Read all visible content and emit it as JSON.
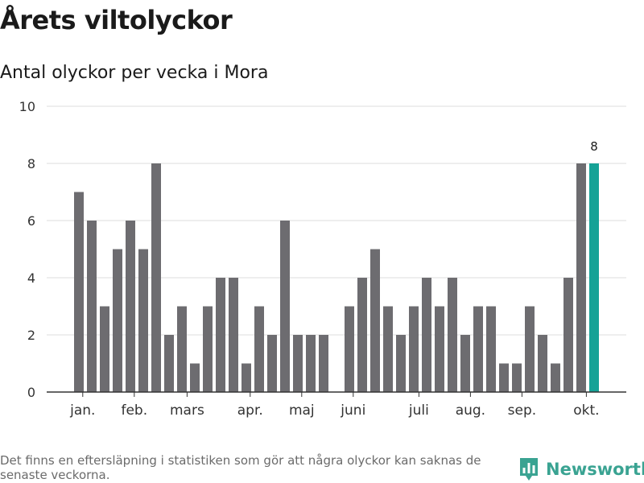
{
  "header": {
    "title": "Årets viltolyckor",
    "subtitle": "Antal olyckor per vecka i Mora"
  },
  "footer": {
    "note": "Det finns en eftersläpning i statistiken som gör att några olyckor kan saknas de senaste veckorna.",
    "brand_name": "Newsworthy",
    "brand_icon": "bar-chart-pin-icon"
  },
  "colors": {
    "bar": "#6d6c70",
    "highlight": "#15a296",
    "grid": "#dddddd",
    "axis": "#333333",
    "brand": "#3aa392"
  },
  "chart_data": {
    "type": "bar",
    "title": "Antal olyckor per vecka i Mora",
    "ylim": [
      0,
      10
    ],
    "yticks": [
      0,
      2,
      4,
      6,
      8,
      10
    ],
    "grid": true,
    "weeks": [
      1,
      2,
      3,
      4,
      5,
      6,
      7,
      8,
      9,
      10,
      11,
      12,
      13,
      14,
      15,
      16,
      17,
      18,
      19,
      20,
      21,
      22,
      23,
      24,
      25,
      26,
      27,
      28,
      29,
      30,
      31,
      32,
      33,
      34,
      35,
      36,
      37,
      38,
      39,
      40,
      41
    ],
    "values": [
      7,
      6,
      3,
      5,
      6,
      5,
      8,
      2,
      3,
      1,
      3,
      4,
      4,
      1,
      3,
      2,
      6,
      2,
      2,
      2,
      0,
      3,
      4,
      5,
      3,
      2,
      3,
      4,
      3,
      4,
      2,
      3,
      3,
      1,
      1,
      3,
      2,
      1,
      4,
      8,
      8
    ],
    "highlight_last": true,
    "value_label": {
      "text": "8"
    },
    "month_labels": [
      {
        "label": "jan.",
        "week": 1.3
      },
      {
        "label": "feb.",
        "week": 5.3
      },
      {
        "label": "mars",
        "week": 9.4
      },
      {
        "label": "apr.",
        "week": 14.3
      },
      {
        "label": "maj",
        "week": 18.3
      },
      {
        "label": "juni",
        "week": 22.3
      },
      {
        "label": "juli",
        "week": 27.4
      },
      {
        "label": "aug.",
        "week": 31.4
      },
      {
        "label": "sep.",
        "week": 35.4
      },
      {
        "label": "okt.",
        "week": 40.4
      }
    ]
  }
}
